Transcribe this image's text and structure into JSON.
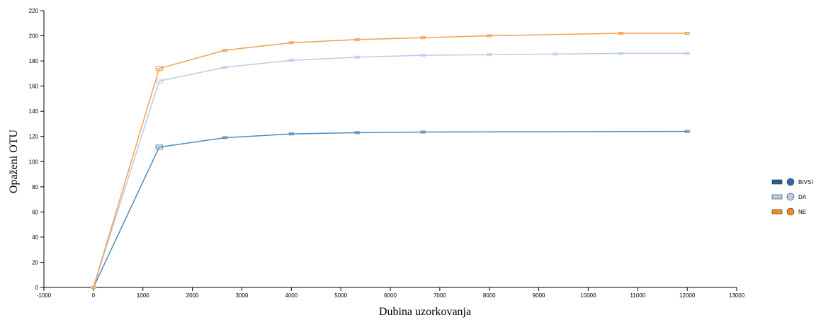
{
  "chart_data": {
    "type": "line",
    "xlabel": "Dubina uzorkovanja",
    "ylabel": "Opaženi OTU",
    "xlim": [
      -1000,
      13000
    ],
    "ylim": [
      0,
      220
    ],
    "x_ticks": [
      -1000,
      0,
      1000,
      2000,
      3000,
      4000,
      5000,
      6000,
      7000,
      8000,
      9000,
      10000,
      11000,
      12000,
      13000
    ],
    "y_ticks": [
      0,
      20,
      40,
      60,
      80,
      100,
      120,
      140,
      160,
      180,
      200,
      220
    ],
    "grid": false,
    "legend_position": "right",
    "series": [
      {
        "name": "BIVSI",
        "color": "#4c8bbd",
        "x": [
          0,
          1330,
          2660,
          4000,
          5330,
          6660,
          12000
        ],
        "y": [
          0,
          111.5,
          119,
          122,
          123,
          123.5,
          124
        ]
      },
      {
        "name": "DA",
        "color": "#b9cde8",
        "x": [
          0,
          1330,
          2660,
          4000,
          5330,
          6660,
          8000,
          9330,
          10660,
          12000
        ],
        "y": [
          0,
          164,
          175,
          180.5,
          183,
          184.5,
          185,
          185.5,
          186,
          186
        ]
      },
      {
        "name": "NE",
        "color": "#f5a04f",
        "x": [
          0,
          1330,
          2660,
          4000,
          5330,
          6660,
          8000,
          10660,
          12000
        ],
        "y": [
          0,
          174,
          188.5,
          194.5,
          197,
          198.5,
          200,
          202,
          202
        ]
      }
    ],
    "legend": [
      {
        "name": "BIVSI",
        "line_color": "#1f5f99",
        "dot_color": "#2a6cab"
      },
      {
        "name": "DA",
        "line_color": "#b9cde8",
        "dot_color": "#b9cde8"
      },
      {
        "name": "NE",
        "line_color": "#f58a20",
        "dot_color": "#f58a20"
      }
    ]
  }
}
